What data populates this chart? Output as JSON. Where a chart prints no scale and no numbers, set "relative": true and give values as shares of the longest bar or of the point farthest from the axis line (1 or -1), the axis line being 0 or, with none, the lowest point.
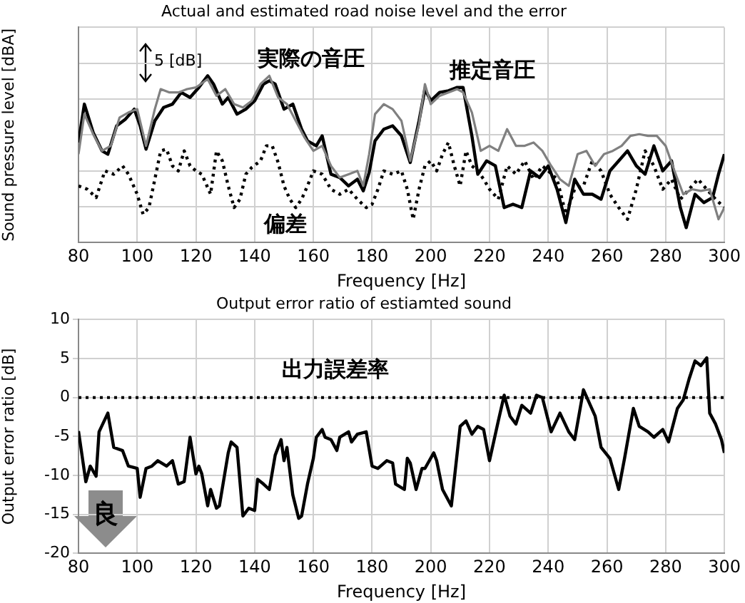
{
  "chart_data": [
    {
      "type": "line",
      "title": "Actual and estimated road noise level and the error",
      "xlabel": "Frequency [Hz]",
      "ylabel": "Sound pressure level [dBA]",
      "relative": true,
      "xlim": [
        80,
        300
      ],
      "xticks": [
        80,
        100,
        120,
        140,
        160,
        180,
        200,
        220,
        240,
        260,
        280,
        300
      ],
      "grid": true,
      "legend": false,
      "annotations": [
        "5 [dB]"
      ],
      "series": [
        {
          "name": "推定音圧",
          "color": "#808080",
          "x": [
            80,
            82,
            85,
            88,
            91,
            94,
            97,
            100,
            103,
            106,
            108,
            111,
            114,
            117,
            120,
            124,
            127,
            130,
            133,
            136,
            139,
            142,
            145,
            148,
            151,
            154,
            157,
            160,
            163,
            166,
            169,
            172,
            175,
            177,
            179,
            181,
            184,
            187,
            190,
            193,
            196,
            198,
            200,
            203,
            206,
            209,
            211,
            214,
            217,
            220,
            223,
            226,
            229,
            232,
            235,
            238,
            241,
            244,
            247,
            250,
            253,
            256,
            259,
            262,
            265,
            268,
            271,
            274,
            277,
            280,
            283,
            286,
            289,
            292,
            295,
            298,
            300
          ],
          "values": [
            0.53,
            0.77,
            0.65,
            0.55,
            0.58,
            0.75,
            0.78,
            0.8,
            0.58,
            0.8,
            0.92,
            0.9,
            0.9,
            0.92,
            0.93,
            0.98,
            0.88,
            0.92,
            0.83,
            0.81,
            0.85,
            0.95,
            1,
            0.87,
            0.83,
            0.73,
            0.63,
            0.55,
            0.58,
            0.46,
            0.39,
            0.41,
            0.43,
            0.34,
            0.53,
            0.77,
            0.83,
            0.8,
            0.73,
            0.49,
            0.71,
            0.95,
            0.83,
            0.88,
            0.9,
            0.92,
            0.9,
            0.78,
            0.55,
            0.58,
            0.55,
            0.68,
            0.58,
            0.58,
            0.6,
            0.55,
            0.46,
            0.38,
            0.34,
            0.53,
            0.55,
            0.46,
            0.53,
            0.55,
            0.58,
            0.64,
            0.65,
            0.64,
            0.64,
            0.58,
            0.43,
            0.29,
            0.32,
            0.31,
            0.32,
            0.14,
            0.21
          ]
        },
        {
          "name": "実際の音圧",
          "color": "#000000",
          "x": [
            80,
            82,
            85,
            88,
            90,
            93,
            96,
            99,
            101,
            103,
            106,
            109,
            112,
            115,
            118,
            121,
            124,
            126,
            129,
            131,
            134,
            137,
            140,
            143,
            145,
            147,
            150,
            153,
            156,
            158,
            161,
            163,
            166,
            169,
            172,
            175,
            177,
            179,
            181,
            184,
            187,
            190,
            193,
            196,
            198,
            200,
            203,
            206,
            209,
            211,
            214,
            216,
            219,
            222,
            225,
            228,
            231,
            234,
            237,
            240,
            243,
            246,
            249,
            252,
            255,
            258,
            261,
            264,
            267,
            270,
            273,
            276,
            279,
            282,
            285,
            287,
            290,
            293,
            296,
            298,
            300
          ],
          "values": [
            0.6,
            0.83,
            0.66,
            0.55,
            0.53,
            0.7,
            0.74,
            0.8,
            0.7,
            0.56,
            0.73,
            0.81,
            0.83,
            0.9,
            0.87,
            0.93,
            1,
            0.95,
            0.83,
            0.87,
            0.77,
            0.8,
            0.85,
            0.95,
            0.97,
            0.95,
            0.8,
            0.83,
            0.68,
            0.61,
            0.58,
            0.64,
            0.41,
            0.39,
            0.34,
            0.38,
            0.31,
            0.42,
            0.61,
            0.68,
            0.7,
            0.64,
            0.48,
            0.73,
            0.92,
            0.85,
            0.9,
            0.91,
            0.93,
            0.93,
            0.64,
            0.41,
            0.49,
            0.46,
            0.21,
            0.23,
            0.21,
            0.43,
            0.39,
            0.46,
            0.32,
            0.12,
            0.38,
            0.29,
            0.29,
            0.26,
            0.43,
            0.49,
            0.55,
            0.46,
            0.41,
            0.58,
            0.43,
            0.49,
            0.21,
            0.09,
            0.29,
            0.24,
            0.27,
            0.41,
            0.53
          ]
        },
        {
          "name": "偏差",
          "color": "#000000",
          "line_style": "dotted",
          "x": [
            80,
            83,
            86,
            89,
            92,
            95,
            97,
            100,
            102,
            104,
            106,
            108,
            110,
            112,
            114,
            116,
            118,
            120,
            122,
            125,
            127,
            129,
            131,
            133,
            135,
            137,
            139,
            142,
            144,
            146,
            148,
            150,
            152,
            154,
            156,
            158,
            160,
            163,
            166,
            169,
            172,
            175,
            178,
            180,
            182,
            184,
            187,
            190,
            192,
            194,
            196,
            198,
            200,
            202,
            204,
            206,
            208,
            210,
            212,
            214,
            216,
            218,
            220,
            223,
            226,
            229,
            232,
            235,
            238,
            240,
            243,
            246,
            249,
            252,
            255,
            258,
            261,
            264,
            267,
            270,
            273,
            276,
            279,
            282,
            285,
            288,
            291,
            294,
            297,
            300
          ],
          "values": [
            0.34,
            0.32,
            0.27,
            0.43,
            0.41,
            0.46,
            0.41,
            0.29,
            0.17,
            0.21,
            0.38,
            0.55,
            0.56,
            0.46,
            0.43,
            0.55,
            0.46,
            0.43,
            0.41,
            0.29,
            0.55,
            0.49,
            0.34,
            0.21,
            0.26,
            0.41,
            0.45,
            0.49,
            0.58,
            0.58,
            0.48,
            0.34,
            0.26,
            0.21,
            0.26,
            0.34,
            0.43,
            0.41,
            0.32,
            0.29,
            0.32,
            0.26,
            0.21,
            0.23,
            0.32,
            0.43,
            0.41,
            0.43,
            0.32,
            0.14,
            0.32,
            0.46,
            0.49,
            0.43,
            0.53,
            0.6,
            0.46,
            0.34,
            0.55,
            0.46,
            0.43,
            0.38,
            0.32,
            0.26,
            0.46,
            0.41,
            0.49,
            0.38,
            0.46,
            0.43,
            0.38,
            0.17,
            0.32,
            0.34,
            0.49,
            0.43,
            0.29,
            0.21,
            0.14,
            0.32,
            0.55,
            0.46,
            0.32,
            0.38,
            0.26,
            0.32,
            0.38,
            0.32,
            0.26,
            0.21
          ]
        }
      ]
    },
    {
      "type": "line",
      "title": "Output error ratio of estiamted sound",
      "xlabel": "Frequency [Hz]",
      "ylabel": "Output error ratio [dB]",
      "xlim": [
        80,
        300
      ],
      "xticks": [
        80,
        100,
        120,
        140,
        160,
        180,
        200,
        220,
        240,
        260,
        280,
        300
      ],
      "ylim": [
        -20,
        10
      ],
      "yticks": [
        -20,
        -15,
        -10,
        -5,
        0,
        5,
        10
      ],
      "grid": true,
      "legend": false,
      "annotations": [
        "良"
      ],
      "ref_lines": [
        {
          "axis": "y",
          "value": 0,
          "color": "#000000",
          "line_style": "dotted"
        }
      ],
      "series": [
        {
          "name": "出力誤差率",
          "color": "#000000",
          "x": [
            80,
            82.5,
            84,
            86,
            87,
            90,
            92,
            95,
            97,
            100,
            101,
            103,
            105,
            107,
            110,
            112,
            114,
            116,
            118,
            120,
            121,
            122,
            124,
            125,
            127,
            128,
            131,
            132,
            134,
            136,
            138,
            140,
            141,
            143,
            145,
            147,
            149,
            150,
            151,
            153,
            155,
            156,
            158,
            160,
            161,
            163,
            164,
            166,
            168,
            169,
            172,
            173,
            175,
            178,
            180,
            182,
            185,
            187,
            188,
            191,
            192,
            193,
            195,
            197,
            198,
            201,
            202,
            204,
            207,
            210,
            212,
            214,
            216,
            218,
            220,
            223,
            225,
            227,
            229,
            231,
            234,
            236,
            238,
            241,
            244,
            247,
            249,
            252,
            256,
            258,
            261,
            264,
            266,
            269,
            271,
            274,
            276,
            279,
            281,
            284,
            286,
            288,
            290,
            292,
            294,
            295,
            297,
            299,
            300
          ],
          "values": [
            -4.3,
            -10.8,
            -8.8,
            -10.1,
            -4.4,
            -2,
            -6.4,
            -6.8,
            -8.8,
            -9.1,
            -12.8,
            -9.1,
            -8.8,
            -8.1,
            -8.8,
            -8.1,
            -11.1,
            -10.8,
            -5.1,
            -9.8,
            -8.8,
            -9.8,
            -13.9,
            -11.8,
            -14.2,
            -13.9,
            -7.1,
            -5.7,
            -6.4,
            -15.2,
            -14.2,
            -14.5,
            -10.5,
            -11.1,
            -11.8,
            -7.4,
            -5.4,
            -8.1,
            -6.4,
            -12.5,
            -15.5,
            -15.2,
            -11.1,
            -7.8,
            -5.1,
            -4.1,
            -5.1,
            -5.4,
            -6.8,
            -5.1,
            -4.4,
            -5.7,
            -4.7,
            -4.4,
            -8.8,
            -9.1,
            -8.1,
            -8.4,
            -11.1,
            -11.8,
            -7.8,
            -8.4,
            -11.8,
            -9.1,
            -9.1,
            -7.1,
            -8.1,
            -11.8,
            -13.9,
            -3.7,
            -3,
            -4.7,
            -3.7,
            -4.1,
            -8.1,
            -3,
            0.3,
            -2.4,
            -3.4,
            -1,
            -2,
            0.3,
            0,
            -4.4,
            -2,
            -4.4,
            -5.4,
            1,
            -2.4,
            -6.4,
            -7.8,
            -11.8,
            -7.8,
            -1.4,
            -3.7,
            -4.4,
            -5.1,
            -4.1,
            -5.7,
            -1.4,
            -0.3,
            2.4,
            4.7,
            4.1,
            5.1,
            -2,
            -3.4,
            -5.4,
            -7.1
          ]
        }
      ]
    }
  ]
}
